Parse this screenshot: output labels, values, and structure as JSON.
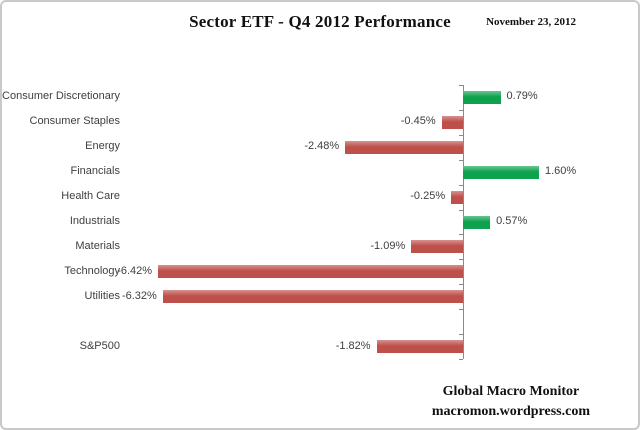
{
  "header": {
    "title": "Sector ETF - Q4 2012 Performance",
    "date": "November 23, 2012"
  },
  "footer": {
    "line1": "Global Macro Monitor",
    "line2": "macromon.wordpress.com"
  },
  "colors": {
    "positive": "#0ea24e",
    "negative": "#be504c",
    "axis": "#8a8a8a",
    "text": "#3f3f3f",
    "border": "#c9c9c9"
  },
  "chart_data": {
    "type": "bar",
    "orientation": "horizontal",
    "title": "Sector ETF - Q4 2012 Performance",
    "categories": [
      "Consumer Discretionary",
      "Consumer Staples",
      "Energy",
      "Financials",
      "Health Care",
      "Industrials",
      "Materials",
      "Technology",
      "Utilities",
      "",
      "S&P500"
    ],
    "values": [
      0.79,
      -0.45,
      -2.48,
      1.6,
      -0.25,
      0.57,
      -1.09,
      -6.42,
      -6.32,
      null,
      -1.82
    ],
    "data_labels": [
      "0.79%",
      "-0.45%",
      "-2.48%",
      "1.60%",
      "-0.25%",
      "0.57%",
      "-1.09%",
      "-6.42%",
      "-6.32%",
      null,
      "-1.82%"
    ],
    "xlabel": "",
    "ylabel": "",
    "xlim": [
      -7.1,
      3.5
    ],
    "grid": false,
    "legend": false,
    "value_axis_labels_visible": false,
    "positive_color": "#0ea24e",
    "negative_color": "#be504c"
  }
}
